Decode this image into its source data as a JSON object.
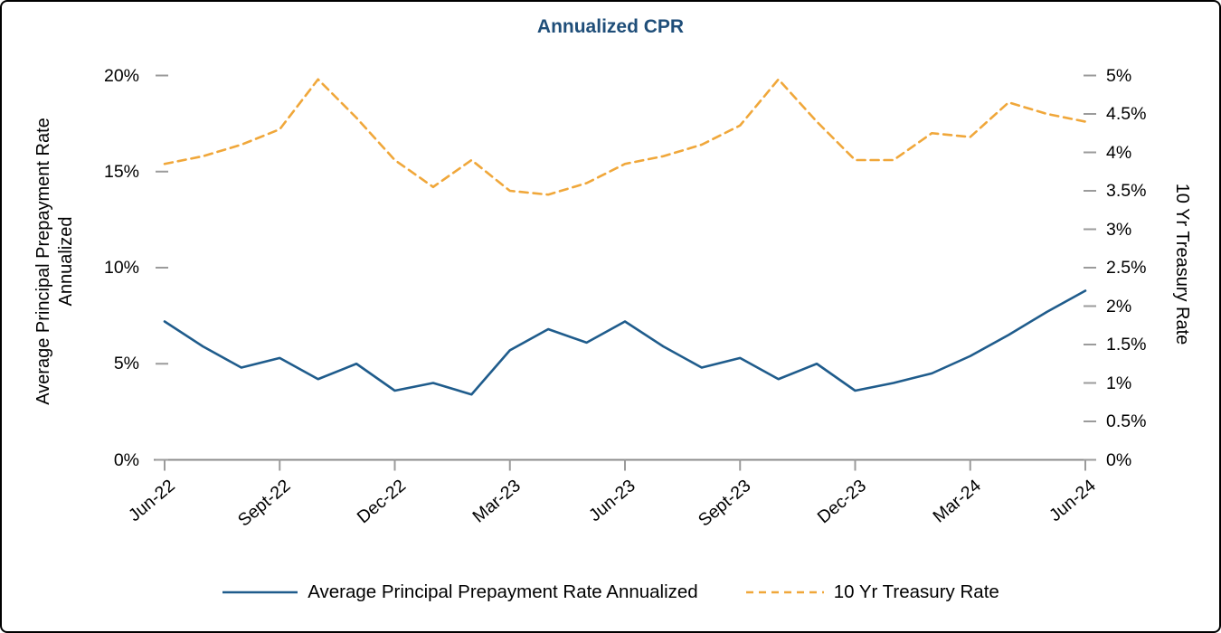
{
  "title": "Annualized CPR",
  "colors": {
    "title": "#1F4E79",
    "prepayment_line": "#1F5C8C",
    "treasury_line": "#F0A73A",
    "axis_line": "#8C8C8C",
    "tick_mark": "#9B9B9B",
    "text": "#000000"
  },
  "left_axis": {
    "title_line1": "Average Principal Prepayment Rate",
    "title_line2": "Annualized",
    "ticks": [
      "0%",
      "5%",
      "10%",
      "15%",
      "20%"
    ]
  },
  "right_axis": {
    "title": "10 Yr Treasury Rate",
    "ticks": [
      "0%",
      "0.5%",
      "1%",
      "1.5%",
      "2%",
      "2.5%",
      "3%",
      "3.5%",
      "4%",
      "4.5%",
      "5%"
    ]
  },
  "legend": {
    "items": [
      {
        "label": "Average Principal Prepayment Rate Annualized",
        "style": "solid",
        "color": "#1F5C8C"
      },
      {
        "label": "10 Yr Treasury Rate",
        "style": "dashed",
        "color": "#F0A73A"
      }
    ]
  },
  "chart_data": {
    "type": "line",
    "title": "Annualized CPR",
    "x": [
      "Jun-22",
      "Jul-22",
      "Aug-22",
      "Sept-22",
      "Oct-22",
      "Nov-22",
      "Dec-22",
      "Jan-23",
      "Feb-23",
      "Mar-23",
      "Apr-23",
      "May-23",
      "Jun-23",
      "Jul-23",
      "Aug-23",
      "Sept-23",
      "Oct-23",
      "Nov-23",
      "Dec-23",
      "Jan-24",
      "Feb-24",
      "Mar-24",
      "Apr-24",
      "May-24",
      "Jun-24"
    ],
    "x_tick_labels": [
      "Jun-22",
      "Sept-22",
      "Dec-22",
      "Mar-23",
      "Jun-23",
      "Sept-23",
      "Dec-23",
      "Mar-24",
      "Jun-24"
    ],
    "left_ylabel": "Average Principal Prepayment Rate Annualized",
    "right_ylabel": "10 Yr Treasury Rate",
    "left_ylim": [
      0,
      20
    ],
    "right_ylim": [
      0,
      5
    ],
    "grid": false,
    "legend_position": "bottom",
    "series": [
      {
        "name": "Average Principal Prepayment Rate Annualized",
        "axis": "left",
        "style": "solid",
        "color": "#1F5C8C",
        "values": [
          7.2,
          5.9,
          4.8,
          5.3,
          4.2,
          5.0,
          3.6,
          4.0,
          3.4,
          5.7,
          6.8,
          6.1,
          7.2,
          5.9,
          4.8,
          5.3,
          4.2,
          5.0,
          3.6,
          4.0,
          4.5,
          5.4,
          6.5,
          7.7,
          8.8
        ]
      },
      {
        "name": "10 Yr Treasury Rate",
        "axis": "right",
        "style": "dashed",
        "color": "#F0A73A",
        "values": [
          3.85,
          3.95,
          4.1,
          4.3,
          4.95,
          4.45,
          3.9,
          3.55,
          3.9,
          3.5,
          3.45,
          3.6,
          3.85,
          3.95,
          4.1,
          4.35,
          4.95,
          4.4,
          3.9,
          3.9,
          4.25,
          4.2,
          4.65,
          4.5,
          4.4
        ]
      }
    ]
  }
}
